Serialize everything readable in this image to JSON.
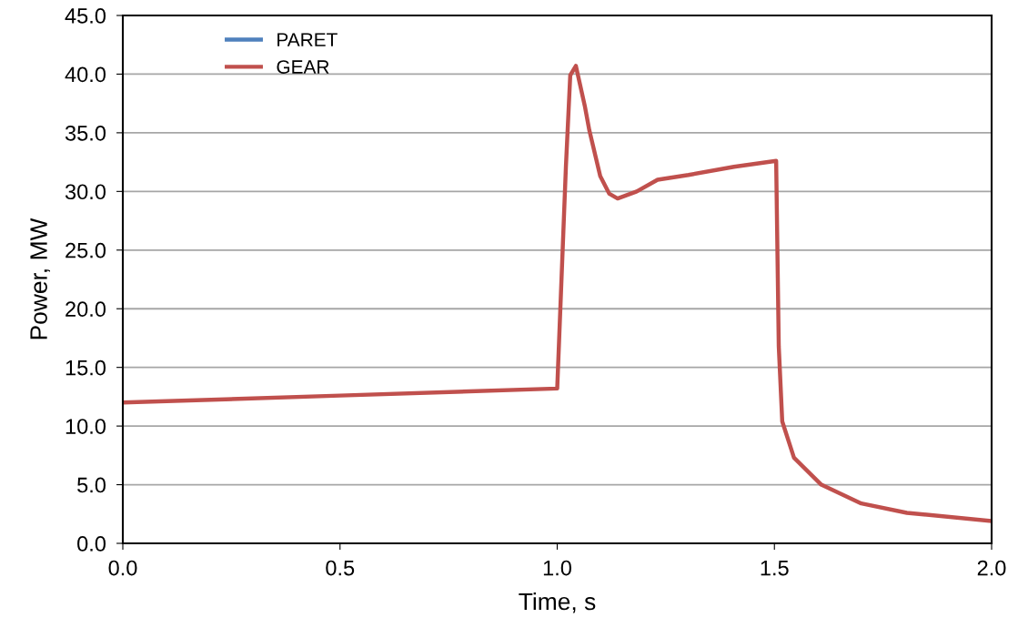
{
  "chart_data": {
    "type": "line",
    "xlabel": "Time, s",
    "ylabel": "Power, MW",
    "xlim": [
      0,
      2
    ],
    "xticks": [
      {
        "value": 0,
        "label": "0.0"
      },
      {
        "value": 0.5,
        "label": "0.5"
      },
      {
        "value": 1,
        "label": "1.0"
      },
      {
        "value": 1.5,
        "label": "1.5"
      },
      {
        "value": 2,
        "label": "2.0"
      }
    ],
    "ylim": [
      0,
      45
    ],
    "yticks": [
      {
        "value": 0,
        "label": "0.0"
      },
      {
        "value": 5,
        "label": "5.0"
      },
      {
        "value": 10,
        "label": "10.0"
      },
      {
        "value": 15,
        "label": "15.0"
      },
      {
        "value": 20,
        "label": "20.0"
      },
      {
        "value": 25,
        "label": "25.0"
      },
      {
        "value": 30,
        "label": "30.0"
      },
      {
        "value": 35,
        "label": "35.0"
      },
      {
        "value": 40,
        "label": "40.0"
      },
      {
        "value": 45,
        "label": "45.0"
      }
    ],
    "grid": "y",
    "legend": "top left",
    "marker": "none",
    "line_style": "solid",
    "x": [
      0,
      0.5,
      1.0,
      1.02,
      1.03,
      1.043,
      1.064,
      1.074,
      1.099,
      1.12,
      1.139,
      1.183,
      1.231,
      1.302,
      1.407,
      1.504,
      1.51,
      1.518,
      1.545,
      1.608,
      1.7,
      1.805,
      2.0
    ],
    "series": [
      {
        "name": "PARET",
        "color": "#4f81bd",
        "values": [
          null,
          null,
          null,
          null,
          null,
          null,
          null,
          null,
          null,
          null,
          null,
          null,
          null,
          null,
          null,
          null,
          null,
          null,
          null,
          null,
          null,
          null,
          null
        ]
      },
      {
        "name": "GEAR",
        "color": "#c0504d",
        "values": [
          12.0,
          12.6,
          13.2,
          32.1,
          39.9,
          40.7,
          37.2,
          35.2,
          31.3,
          29.8,
          29.4,
          30.0,
          31.0,
          31.4,
          32.1,
          32.6,
          16.8,
          10.4,
          7.3,
          5.0,
          3.4,
          2.6,
          1.9
        ]
      }
    ]
  }
}
